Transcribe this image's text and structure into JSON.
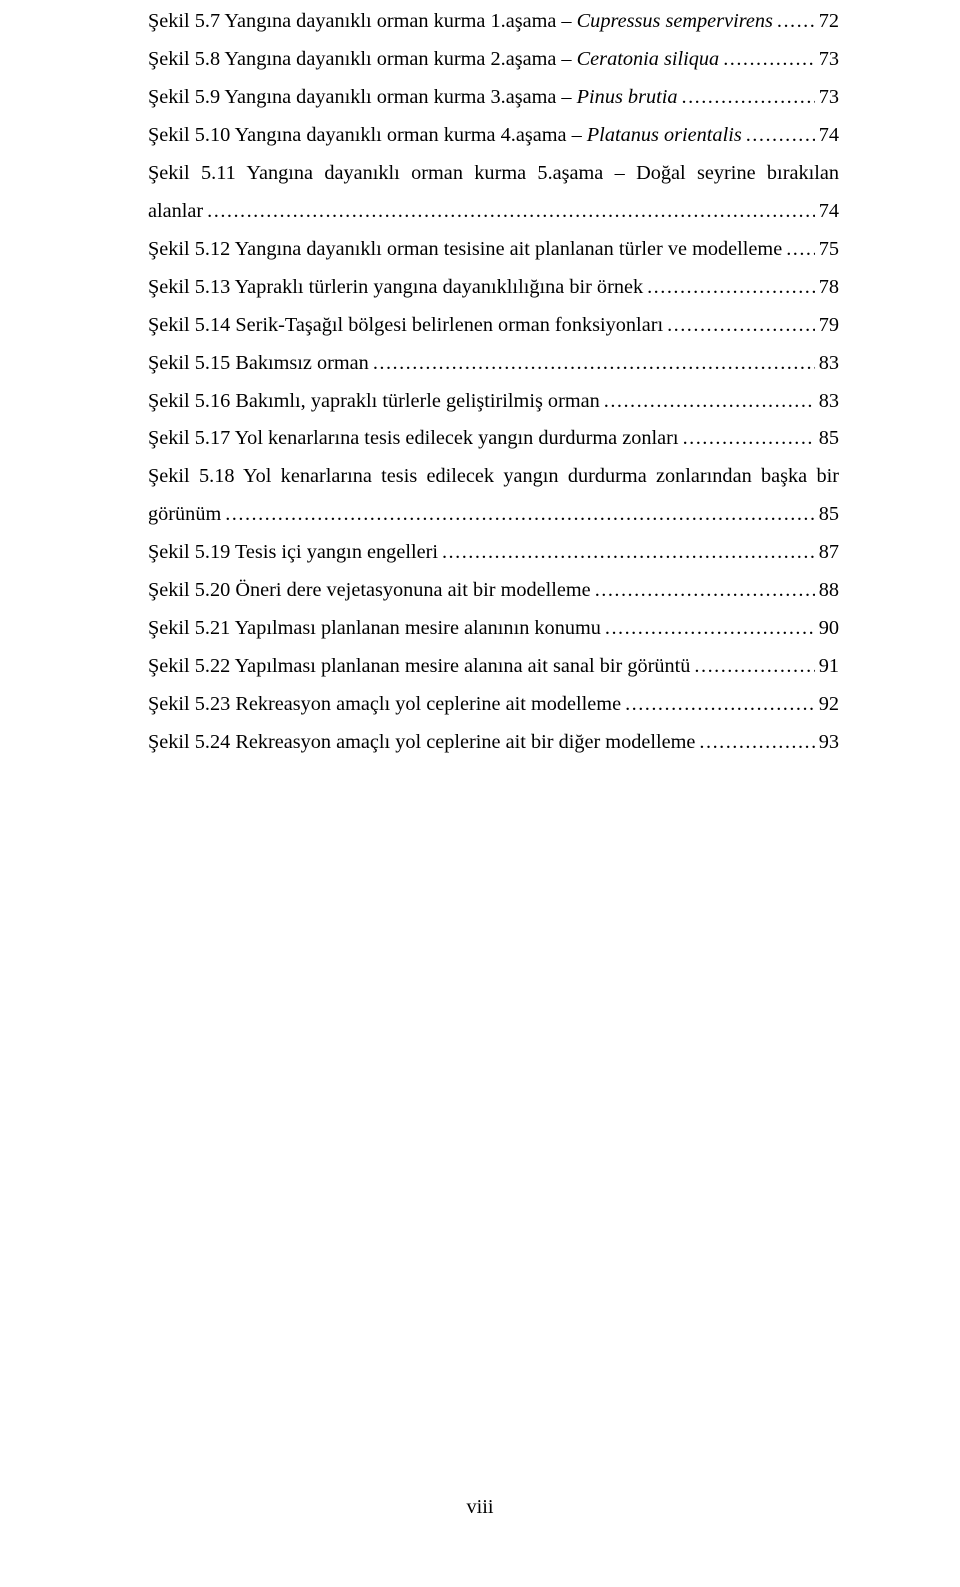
{
  "entries": [
    {
      "prefix": "Şekil 5.7 Yangına dayanıklı orman kurma 1.aşama – ",
      "italic": "Cupressus sempervirens",
      "suffix": "",
      "page": "72"
    },
    {
      "prefix": "Şekil 5.8 Yangına dayanıklı orman kurma 2.aşama – ",
      "italic": "Ceratonia siliqua",
      "suffix": "",
      "page": "73"
    },
    {
      "prefix": "Şekil 5.9 Yangına dayanıklı orman kurma 3.aşama – ",
      "italic": "Pinus brutia",
      "suffix": "",
      "page": "73"
    },
    {
      "prefix": "Şekil 5.10 Yangına dayanıklı orman kurma 4.aşama – ",
      "italic": "Platanus orientalis",
      "suffix": "",
      "page": "74"
    },
    {
      "wrap": true,
      "line1_prefix": "Şekil 5.11 Yangına dayanıklı orman kurma 5.aşama – ",
      "line1_italic": "Doğal seyrine bırakılan",
      "line2": "alanlar",
      "page": "74"
    },
    {
      "prefix": "Şekil 5.12 Yangına dayanıklı orman tesisine ait planlanan türler ve modelleme",
      "italic": "",
      "suffix": "",
      "page": "75"
    },
    {
      "prefix": "Şekil 5.13 Yapraklı türlerin yangına dayanıklılığına bir örnek",
      "italic": "",
      "suffix": "",
      "page": "78"
    },
    {
      "prefix": "Şekil 5.14 Serik-Taşağıl bölgesi belirlenen orman fonksiyonları",
      "italic": "",
      "suffix": "",
      "page": "79"
    },
    {
      "prefix": "Şekil 5.15 Bakımsız orman",
      "italic": "",
      "suffix": "",
      "page": "83"
    },
    {
      "prefix": "Şekil 5.16 Bakımlı, yapraklı türlerle geliştirilmiş orman",
      "italic": "",
      "suffix": "",
      "page": "83"
    },
    {
      "prefix": "Şekil 5.17 Yol kenarlarına tesis edilecek yangın durdurma zonları",
      "italic": "",
      "suffix": "",
      "page": "85"
    },
    {
      "wrap": true,
      "line1_prefix": "Şekil 5.18 Yol kenarlarına tesis edilecek yangın durdurma zonlarından başka bir",
      "line1_italic": "",
      "line2": "görünüm",
      "page": "85"
    },
    {
      "prefix": "Şekil 5.19 Tesis içi yangın engelleri",
      "italic": "",
      "suffix": "",
      "page": "87"
    },
    {
      "prefix": "Şekil 5.20 Öneri dere vejetasyonuna ait bir modelleme",
      "italic": "",
      "suffix": "",
      "page": "88"
    },
    {
      "prefix": "Şekil 5.21 Yapılması planlanan mesire alanının konumu",
      "italic": "",
      "suffix": "",
      "page": "90"
    },
    {
      "prefix": "Şekil 5.22 Yapılması planlanan mesire alanına ait sanal bir görüntü",
      "italic": "",
      "suffix": "",
      "page": "91"
    },
    {
      "prefix": "Şekil 5.23 Rekreasyon amaçlı yol ceplerine ait modelleme",
      "italic": "",
      "suffix": "",
      "page": "92"
    },
    {
      "prefix": "Şekil 5.24 Rekreasyon amaçlı yol ceplerine ait bir diğer modelleme",
      "italic": "",
      "suffix": "",
      "page": "93"
    }
  ],
  "footer": "viii"
}
